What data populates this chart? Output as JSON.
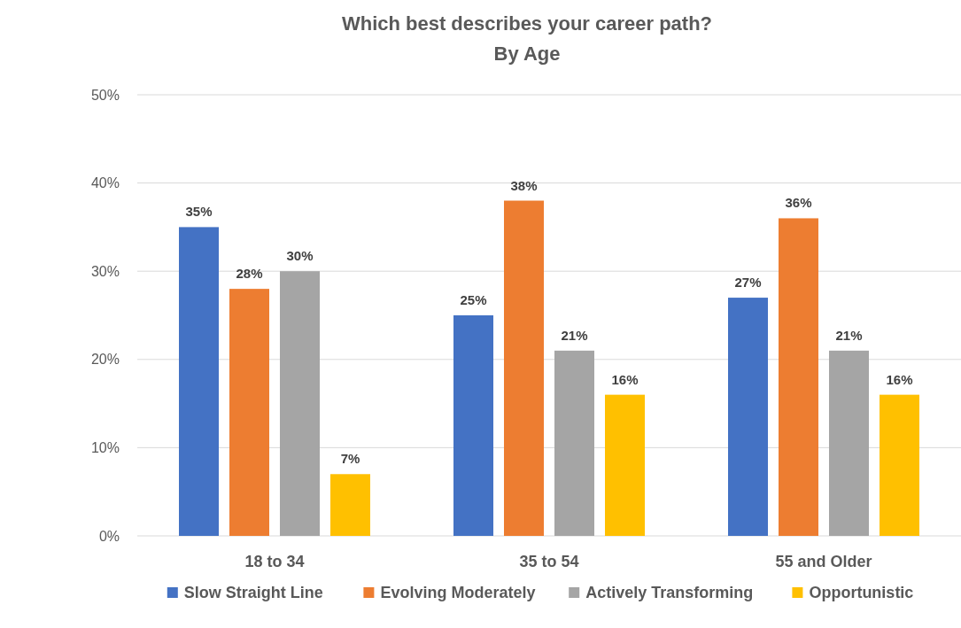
{
  "chart_data": {
    "type": "bar",
    "title": "Which best describes your career path?",
    "subtitle": "By Age",
    "categories": [
      "18 to 34",
      "35 to 54",
      "55 and Older"
    ],
    "series": [
      {
        "name": "Slow Straight Line",
        "color": "#4472c4",
        "values": [
          35,
          25,
          27
        ],
        "value_labels": [
          "35%",
          "25%",
          "27%"
        ]
      },
      {
        "name": "Evolving Moderately",
        "color": "#ed7d31",
        "values": [
          28,
          38,
          36
        ],
        "value_labels": [
          "28%",
          "38%",
          "36%"
        ]
      },
      {
        "name": "Actively Transforming",
        "color": "#a5a5a5",
        "values": [
          30,
          21,
          21
        ],
        "value_labels": [
          "30%",
          "21%",
          "21%"
        ]
      },
      {
        "name": "Opportunistic",
        "color": "#ffc000",
        "values": [
          7,
          16,
          16
        ],
        "value_labels": [
          "7%",
          "16%",
          "16%"
        ]
      }
    ],
    "ylim": [
      0,
      50
    ],
    "yticks": [
      {
        "value": 0,
        "label": "0%"
      },
      {
        "value": 10,
        "label": "10%"
      },
      {
        "value": 20,
        "label": "20%"
      },
      {
        "value": 30,
        "label": "30%"
      },
      {
        "value": 40,
        "label": "40%"
      },
      {
        "value": 50,
        "label": "50%"
      }
    ],
    "grid": "y",
    "legend": "bottom"
  }
}
